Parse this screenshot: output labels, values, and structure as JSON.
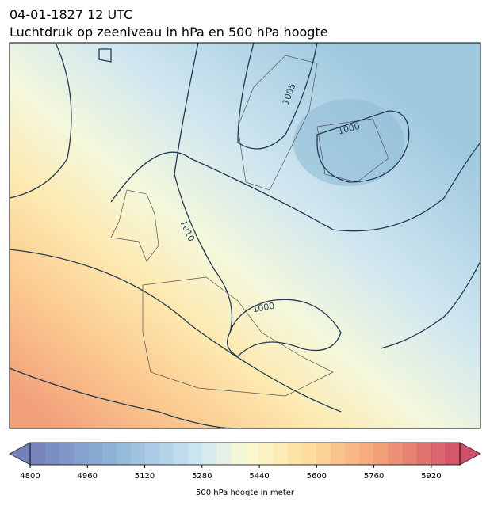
{
  "title": {
    "line1": "04-01-1827 12 UTC",
    "line2": "Luchtdruk op zeeniveau in hPa en 500 hPa hoogte"
  },
  "contour_labels": [
    "1005",
    "1000",
    "1010",
    "1000"
  ],
  "colorbar": {
    "label": "500 hPa hoogte in meter",
    "lim": [
      4800,
      6000
    ],
    "ticks": [
      4800,
      4960,
      5120,
      5280,
      5440,
      5600,
      5760,
      5920
    ]
  }
}
